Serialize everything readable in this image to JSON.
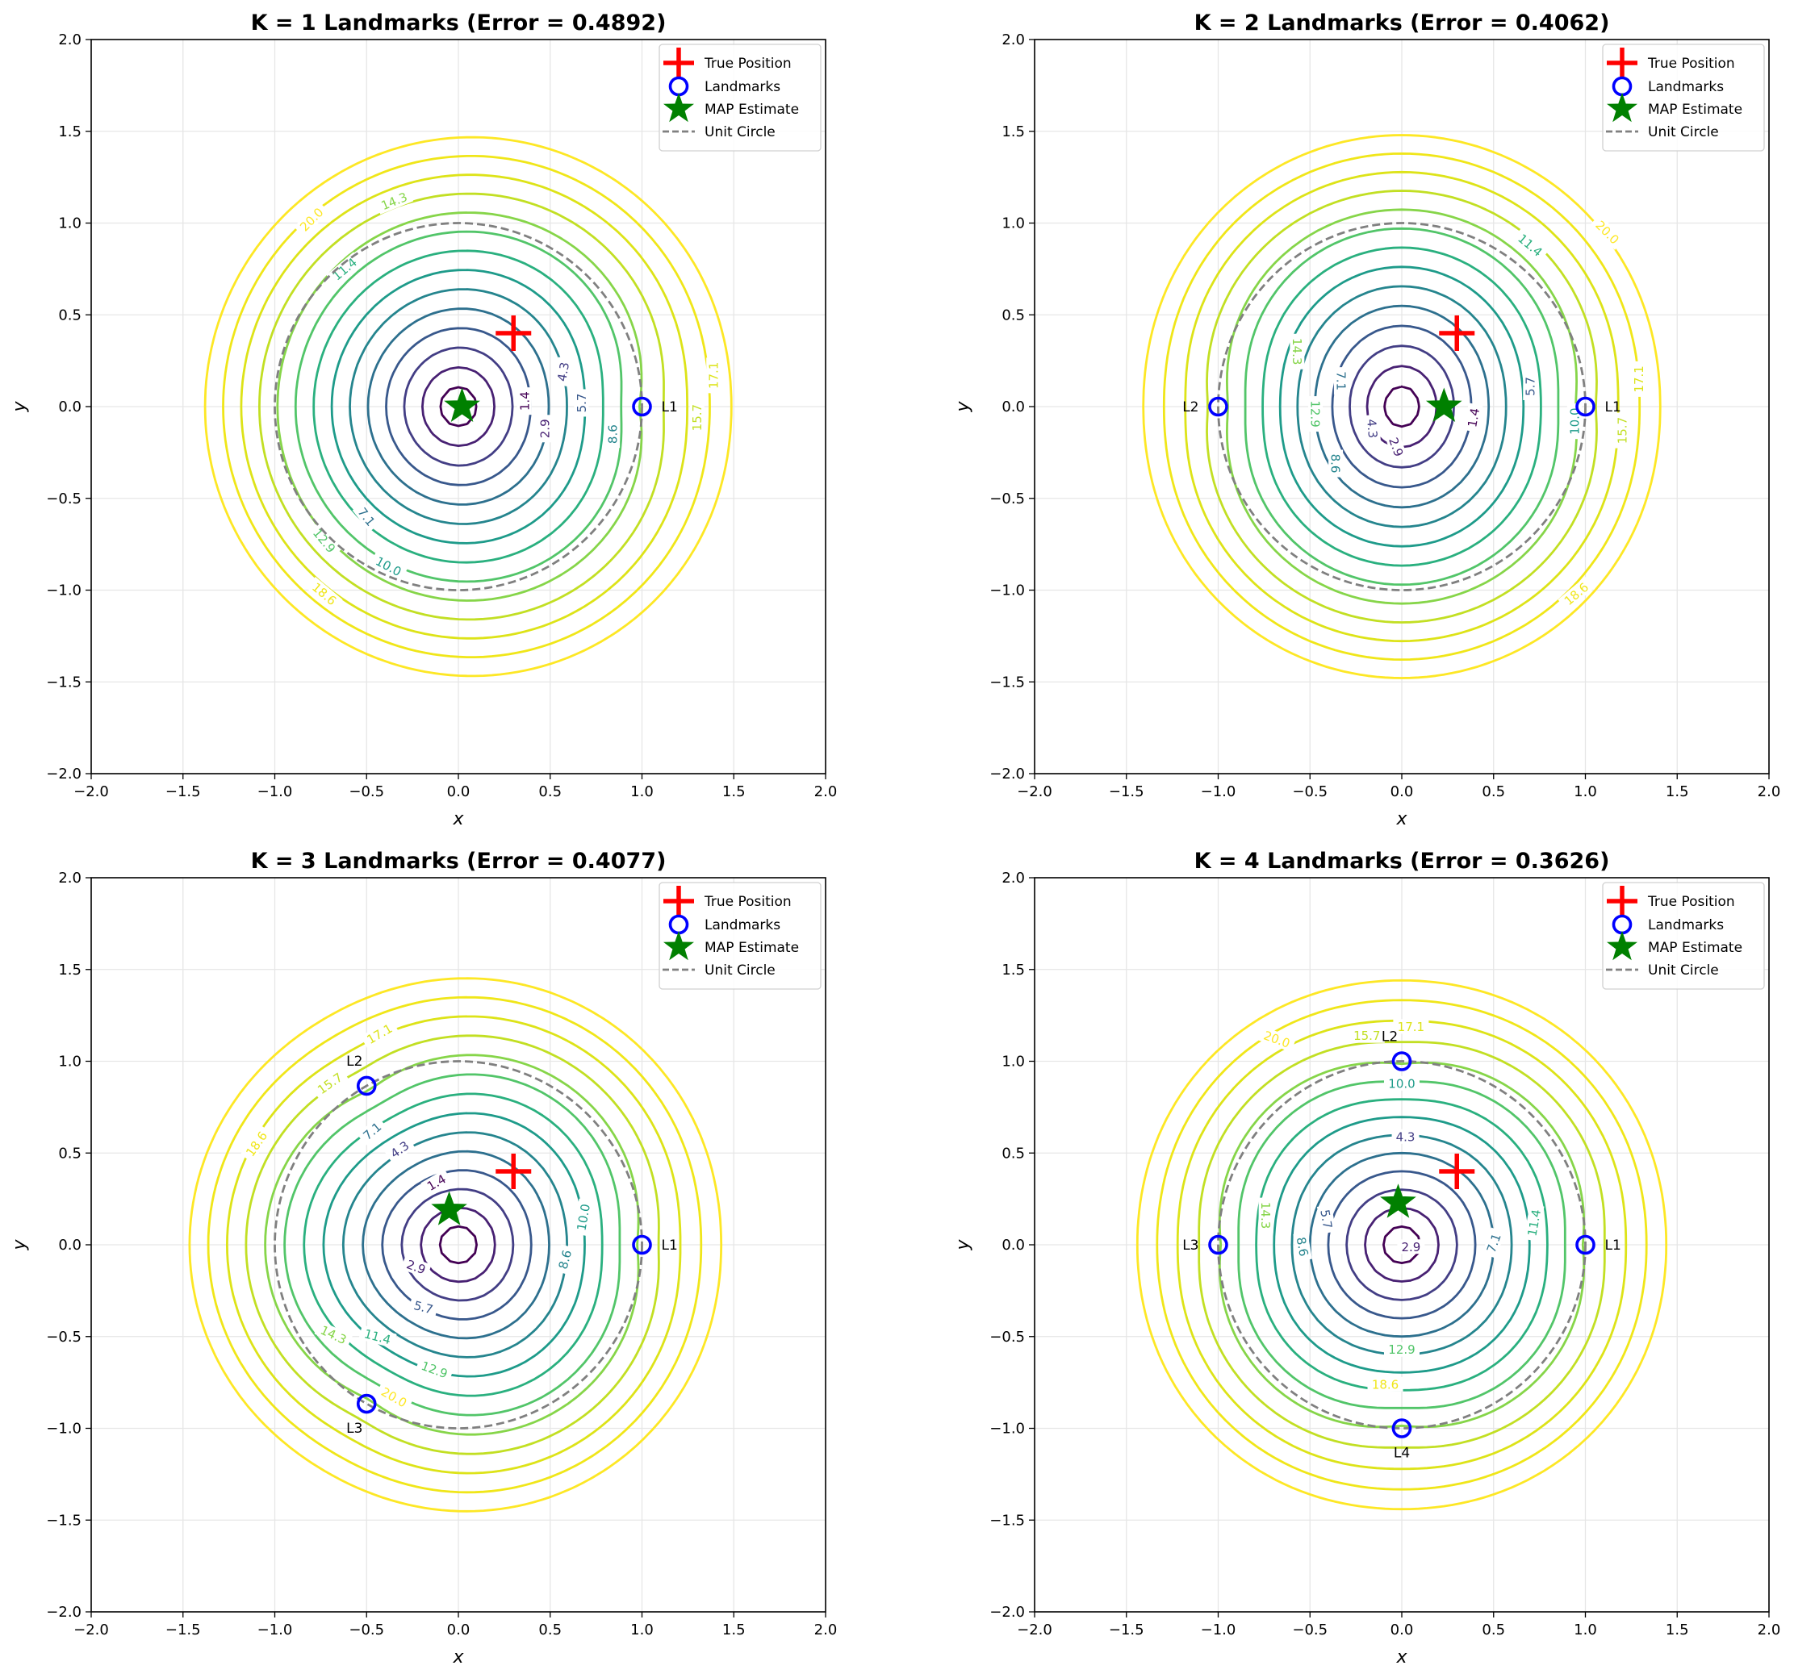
{
  "chart_data": [
    {
      "type": "contour",
      "title": "K = 1 Landmarks (Error = 0.4892)",
      "xlabel": "x",
      "ylabel": "y",
      "xlim": [
        -2,
        2
      ],
      "ylim": [
        -2,
        2
      ],
      "xticks": [
        "−2.0",
        "−1.5",
        "−1.0",
        "−0.5",
        "0.0",
        "0.5",
        "1.0",
        "1.5",
        "2.0"
      ],
      "yticks": [
        "−2.0",
        "−1.5",
        "−1.0",
        "−0.5",
        "0.0",
        "0.5",
        "1.0",
        "1.5",
        "2.0"
      ],
      "grid": true,
      "legend_position": "top-right",
      "true_position": [
        0.3,
        0.4
      ],
      "map_estimate": [
        0.02,
        0.0
      ],
      "landmarks": [
        {
          "label": "L1",
          "x": 1.0,
          "y": 0.0
        }
      ],
      "contour_levels": [
        "1.4",
        "2.9",
        "4.3",
        "5.7",
        "7.1",
        "8.6",
        "10.0",
        "11.4",
        "12.9",
        "14.3",
        "15.7",
        "17.1",
        "18.6",
        "20.0"
      ],
      "contour_labels": [
        {
          "text": "1.4",
          "x": 0.36,
          "y": 0.03,
          "rot": -90,
          "level": 0
        },
        {
          "text": "2.9",
          "x": 0.47,
          "y": -0.12,
          "rot": -90,
          "level": 1
        },
        {
          "text": "4.3",
          "x": 0.57,
          "y": 0.19,
          "rot": -80,
          "level": 2
        },
        {
          "text": "5.7",
          "x": 0.67,
          "y": 0.02,
          "rot": -90,
          "level": 3
        },
        {
          "text": "8.6",
          "x": 0.84,
          "y": -0.15,
          "rot": -90,
          "level": 5
        },
        {
          "text": "7.1",
          "x": -0.5,
          "y": -0.6,
          "rot": 52,
          "level": 4
        },
        {
          "text": "10.0",
          "x": -0.38,
          "y": -0.87,
          "rot": 28,
          "level": 6
        },
        {
          "text": "11.4",
          "x": -0.62,
          "y": 0.75,
          "rot": -40,
          "level": 7
        },
        {
          "text": "12.9",
          "x": -0.73,
          "y": -0.73,
          "rot": 50,
          "level": 8
        },
        {
          "text": "14.3",
          "x": -0.35,
          "y": 1.12,
          "rot": -22,
          "level": 9
        },
        {
          "text": "15.7",
          "x": 1.3,
          "y": -0.06,
          "rot": -90,
          "level": 10
        },
        {
          "text": "17.1",
          "x": 1.39,
          "y": 0.17,
          "rot": -90,
          "level": 11
        },
        {
          "text": "18.6",
          "x": -0.73,
          "y": -1.02,
          "rot": 40,
          "level": 12
        },
        {
          "text": "20.0",
          "x": -0.8,
          "y": 1.02,
          "rot": -45,
          "level": 13
        }
      ]
    },
    {
      "type": "contour",
      "title": "K = 2 Landmarks (Error = 0.4062)",
      "xlabel": "x",
      "ylabel": "y",
      "xlim": [
        -2,
        2
      ],
      "ylim": [
        -2,
        2
      ],
      "xticks": [
        "−2.0",
        "−1.5",
        "−1.0",
        "−0.5",
        "0.0",
        "0.5",
        "1.0",
        "1.5",
        "2.0"
      ],
      "yticks": [
        "−2.0",
        "−1.5",
        "−1.0",
        "−0.5",
        "0.0",
        "0.5",
        "1.0",
        "1.5",
        "2.0"
      ],
      "grid": true,
      "legend_position": "top-right",
      "true_position": [
        0.3,
        0.4
      ],
      "map_estimate": [
        0.23,
        0.0
      ],
      "landmarks": [
        {
          "label": "L1",
          "x": 1.0,
          "y": 0.0
        },
        {
          "label": "L2",
          "x": -1.0,
          "y": 0.0
        }
      ],
      "contour_levels": [
        "1.4",
        "2.9",
        "4.3",
        "5.7",
        "7.1",
        "8.6",
        "10.0",
        "11.4",
        "12.9",
        "14.3",
        "15.7",
        "17.1",
        "18.6",
        "20.0"
      ],
      "contour_labels": [
        {
          "text": "1.4",
          "x": 0.39,
          "y": -0.06,
          "rot": -80,
          "level": 0
        },
        {
          "text": "2.9",
          "x": -0.03,
          "y": -0.22,
          "rot": 70,
          "level": 1
        },
        {
          "text": "4.3",
          "x": -0.16,
          "y": -0.12,
          "rot": 85,
          "level": 2
        },
        {
          "text": "5.7",
          "x": 0.7,
          "y": 0.11,
          "rot": -90,
          "level": 3
        },
        {
          "text": "7.1",
          "x": -0.33,
          "y": 0.14,
          "rot": 90,
          "level": 4
        },
        {
          "text": "8.6",
          "x": -0.36,
          "y": -0.31,
          "rot": 90,
          "level": 5
        },
        {
          "text": "10.0",
          "x": 0.94,
          "y": -0.08,
          "rot": -90,
          "level": 6
        },
        {
          "text": "11.4",
          "x": 0.7,
          "y": 0.88,
          "rot": 40,
          "level": 7
        },
        {
          "text": "12.9",
          "x": -0.47,
          "y": -0.04,
          "rot": 90,
          "level": 8
        },
        {
          "text": "14.3",
          "x": -0.57,
          "y": 0.3,
          "rot": 90,
          "level": 9
        },
        {
          "text": "15.7",
          "x": 1.2,
          "y": -0.13,
          "rot": -90,
          "level": 10
        },
        {
          "text": "17.1",
          "x": 1.29,
          "y": 0.15,
          "rot": -90,
          "level": 11
        },
        {
          "text": "18.6",
          "x": 0.95,
          "y": -1.02,
          "rot": -40,
          "level": 12
        },
        {
          "text": "20.0",
          "x": 1.12,
          "y": 0.95,
          "rot": 45,
          "level": 13
        }
      ]
    },
    {
      "type": "contour",
      "title": "K = 3 Landmarks (Error = 0.4077)",
      "xlabel": "x",
      "ylabel": "y",
      "xlim": [
        -2,
        2
      ],
      "ylim": [
        -2,
        2
      ],
      "xticks": [
        "−2.0",
        "−1.5",
        "−1.0",
        "−0.5",
        "0.0",
        "0.5",
        "1.0",
        "1.5",
        "2.0"
      ],
      "yticks": [
        "−2.0",
        "−1.5",
        "−1.0",
        "−0.5",
        "0.0",
        "0.5",
        "1.0",
        "1.5",
        "2.0"
      ],
      "grid": true,
      "legend_position": "top-right",
      "true_position": [
        0.3,
        0.4
      ],
      "map_estimate": [
        -0.05,
        0.19
      ],
      "landmarks": [
        {
          "label": "L1",
          "x": 1.0,
          "y": 0.0
        },
        {
          "label": "L2",
          "x": -0.5,
          "y": 0.866
        },
        {
          "label": "L3",
          "x": -0.5,
          "y": -0.866
        }
      ],
      "contour_levels": [
        "1.4",
        "2.9",
        "4.3",
        "5.7",
        "7.1",
        "8.6",
        "10.0",
        "11.4",
        "12.9",
        "14.3",
        "15.7",
        "17.1",
        "18.6",
        "20.0"
      ],
      "contour_labels": [
        {
          "text": "1.4",
          "x": -0.12,
          "y": 0.34,
          "rot": -30,
          "level": 0
        },
        {
          "text": "2.9",
          "x": -0.23,
          "y": -0.12,
          "rot": 20,
          "level": 1
        },
        {
          "text": "4.3",
          "x": -0.32,
          "y": 0.52,
          "rot": -35,
          "level": 2
        },
        {
          "text": "5.7",
          "x": -0.19,
          "y": -0.34,
          "rot": 15,
          "level": 3
        },
        {
          "text": "7.1",
          "x": -0.47,
          "y": 0.62,
          "rot": -40,
          "level": 4
        },
        {
          "text": "8.6",
          "x": 0.58,
          "y": -0.08,
          "rot": -75,
          "level": 5
        },
        {
          "text": "10.0",
          "x": 0.68,
          "y": 0.15,
          "rot": -80,
          "level": 6
        },
        {
          "text": "11.4",
          "x": -0.44,
          "y": -0.5,
          "rot": 15,
          "level": 7
        },
        {
          "text": "12.9",
          "x": -0.13,
          "y": -0.68,
          "rot": 20,
          "level": 8
        },
        {
          "text": "14.3",
          "x": -0.68,
          "y": -0.49,
          "rot": 25,
          "level": 9
        },
        {
          "text": "15.7",
          "x": -0.7,
          "y": 0.88,
          "rot": -35,
          "level": 10
        },
        {
          "text": "17.1",
          "x": -0.43,
          "y": 1.15,
          "rot": -30,
          "level": 11
        },
        {
          "text": "18.6",
          "x": -1.1,
          "y": 0.55,
          "rot": -55,
          "level": 12
        },
        {
          "text": "20.0",
          "x": -0.35,
          "y": -0.83,
          "rot": 30,
          "level": 13
        }
      ]
    },
    {
      "type": "contour",
      "title": "K = 4 Landmarks (Error = 0.3626)",
      "xlabel": "x",
      "ylabel": "y",
      "xlim": [
        -2,
        2
      ],
      "ylim": [
        -2,
        2
      ],
      "xticks": [
        "−2.0",
        "−1.5",
        "−1.0",
        "−0.5",
        "0.0",
        "0.5",
        "1.0",
        "1.5",
        "2.0"
      ],
      "yticks": [
        "−2.0",
        "−1.5",
        "−1.0",
        "−0.5",
        "0.0",
        "0.5",
        "1.0",
        "1.5",
        "2.0"
      ],
      "grid": true,
      "legend_position": "top-right",
      "true_position": [
        0.3,
        0.4
      ],
      "map_estimate": [
        -0.02,
        0.23
      ],
      "landmarks": [
        {
          "label": "L1",
          "x": 1.0,
          "y": 0.0
        },
        {
          "label": "L2",
          "x": 0.0,
          "y": 1.0
        },
        {
          "label": "L3",
          "x": -1.0,
          "y": 0.0
        },
        {
          "label": "L4",
          "x": 0.0,
          "y": -1.0
        }
      ],
      "contour_levels": [
        "1.4",
        "2.9",
        "4.3",
        "5.7",
        "7.1",
        "8.6",
        "10.0",
        "11.4",
        "12.9",
        "14.3",
        "15.7",
        "17.1",
        "18.6",
        "20.0"
      ],
      "contour_labels": [
        {
          "text": "2.9",
          "x": 0.05,
          "y": -0.01,
          "rot": 0,
          "level": 1
        },
        {
          "text": "4.3",
          "x": 0.02,
          "y": 0.59,
          "rot": 0,
          "level": 2
        },
        {
          "text": "5.7",
          "x": -0.41,
          "y": 0.14,
          "rot": 80,
          "level": 3
        },
        {
          "text": "7.1",
          "x": 0.5,
          "y": 0.01,
          "rot": -70,
          "level": 4
        },
        {
          "text": "8.6",
          "x": -0.54,
          "y": -0.01,
          "rot": 80,
          "level": 5
        },
        {
          "text": "10.0",
          "x": 0.0,
          "y": 0.88,
          "rot": 0,
          "level": 6
        },
        {
          "text": "11.4",
          "x": 0.72,
          "y": 0.12,
          "rot": -80,
          "level": 7
        },
        {
          "text": "12.9",
          "x": 0.0,
          "y": -0.57,
          "rot": 0,
          "level": 8
        },
        {
          "text": "14.3",
          "x": -0.74,
          "y": 0.16,
          "rot": 90,
          "level": 9
        },
        {
          "text": "15.7",
          "x": -0.19,
          "y": 1.14,
          "rot": 0,
          "level": 10
        },
        {
          "text": "17.1",
          "x": 0.05,
          "y": 1.19,
          "rot": 0,
          "level": 11
        },
        {
          "text": "18.6",
          "x": -0.09,
          "y": -0.76,
          "rot": 0,
          "level": 12
        },
        {
          "text": "20.0",
          "x": -0.68,
          "y": 1.12,
          "rot": 20,
          "level": 13
        }
      ]
    }
  ],
  "legend": {
    "true_position": "True Position",
    "landmarks": "Landmarks",
    "map_estimate": "MAP Estimate",
    "unit_circle": "Unit Circle"
  },
  "colors": {
    "true_position": "#ff0000",
    "landmarks": "#0000ff",
    "map_estimate": "#008000",
    "unit_circle": "#808080",
    "contour_colormap": [
      "#440154",
      "#482173",
      "#433e85",
      "#38588c",
      "#2d708e",
      "#25858e",
      "#1e9b8a",
      "#2ab07f",
      "#52c569",
      "#86d549",
      "#c2df23",
      "#dde318",
      "#f0e619",
      "#fde725"
    ]
  }
}
